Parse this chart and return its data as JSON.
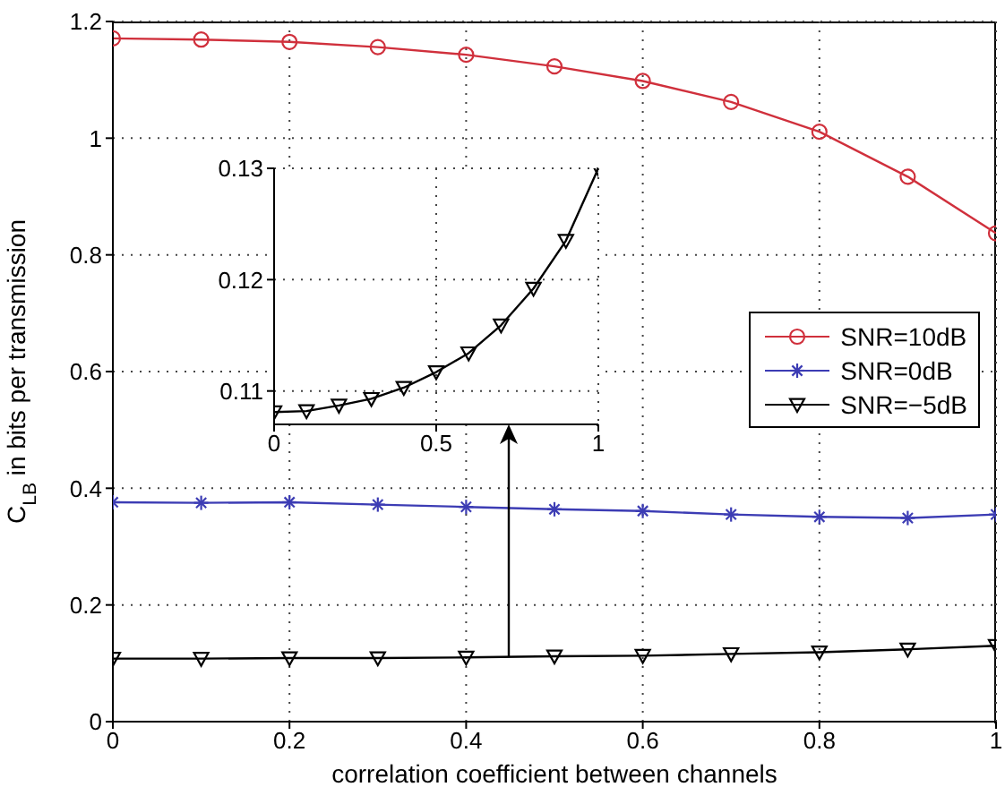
{
  "chart_data": [
    {
      "type": "line",
      "xlabel": "correlation coefficient between channels",
      "ylabel": "C$_{LB}$ in bits per transmission",
      "xlim": [
        0,
        1
      ],
      "ylim": [
        0,
        1.2
      ],
      "xticks": [
        0,
        0.2,
        0.4,
        0.6,
        0.8,
        1
      ],
      "yticks": [
        0,
        0.2,
        0.4,
        0.6,
        0.8,
        1,
        1.2
      ],
      "grid": true,
      "legend": "right",
      "x": [
        0,
        0.1,
        0.2,
        0.3,
        0.4,
        0.5,
        0.6,
        0.7,
        0.8,
        0.9,
        1
      ],
      "series": [
        {
          "name": "SNR=10dB",
          "color": "#d0303c",
          "marker": "circle",
          "values": [
            1.171,
            1.169,
            1.165,
            1.156,
            1.143,
            1.123,
            1.098,
            1.062,
            1.011,
            0.934,
            0.837
          ]
        },
        {
          "name": "SNR=0dB",
          "color": "#3c3cb4",
          "marker": "cross",
          "values": [
            0.376,
            0.375,
            0.376,
            0.372,
            0.368,
            0.364,
            0.361,
            0.355,
            0.351,
            0.349,
            0.355
          ]
        },
        {
          "name": "SNR=−5dB",
          "color": "#000000",
          "marker": "triangle",
          "values": [
            0.108,
            0.108,
            0.109,
            0.109,
            0.11,
            0.112,
            0.113,
            0.116,
            0.119,
            0.124,
            0.13
          ]
        }
      ]
    },
    {
      "type": "line",
      "xlim": [
        0,
        1
      ],
      "ylim": [
        0.107,
        0.13
      ],
      "xticks": [
        0,
        0.5,
        1
      ],
      "yticks": [
        0.11,
        0.12,
        0.13
      ],
      "grid": true,
      "x": [
        0,
        0.1,
        0.2,
        0.3,
        0.4,
        0.5,
        0.6,
        0.7,
        0.8,
        0.9,
        1
      ],
      "series": [
        {
          "color": "#000000",
          "marker": "triangle",
          "values": [
            0.1081,
            0.1082,
            0.1087,
            0.1093,
            0.1103,
            0.1117,
            0.1134,
            0.1159,
            0.1192,
            0.1235,
            0.13
          ]
        }
      ]
    }
  ]
}
